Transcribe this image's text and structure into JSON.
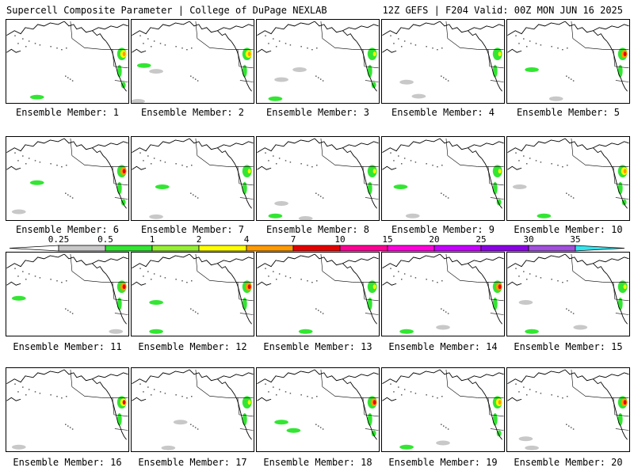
{
  "header": {
    "left": "Supercell Composite Parameter | College of DuPage NEXLAB",
    "right": "12Z GEFS | F204 Valid: 00Z MON JUN 16 2025"
  },
  "legend": {
    "ticks": [
      "0.25",
      "0.5",
      "1",
      "2",
      "4",
      "7",
      "10",
      "15",
      "20",
      "25",
      "30",
      "35"
    ],
    "colors": [
      "#ffffff",
      "#c8c8c8",
      "#32e632",
      "#96f032",
      "#ffff00",
      "#ff9b00",
      "#e60000",
      "#ff0096",
      "#ff00dc",
      "#c800ff",
      "#8c00e6",
      "#a050dc",
      "#32e6f0"
    ]
  },
  "panels": [
    {
      "label": "Ensemble Member: 1",
      "wc": [
        "orange",
        "yellow",
        "green"
      ],
      "gulf": true,
      "pac": [
        [
          0.25,
          0.93,
          "green"
        ]
      ]
    },
    {
      "label": "Ensemble Member: 2",
      "wc": [
        "orange",
        "yellow",
        "green"
      ],
      "gulf": false,
      "pac": [
        [
          0.1,
          0.55,
          "green"
        ],
        [
          0.2,
          0.62,
          "gray"
        ],
        [
          0.05,
          0.98,
          "gray"
        ]
      ]
    },
    {
      "label": "Ensemble Member: 3",
      "wc": [
        "yellow",
        "green",
        "green"
      ],
      "gulf": true,
      "pac": [
        [
          0.15,
          0.95,
          "green"
        ],
        [
          0.35,
          0.6,
          "gray"
        ],
        [
          0.2,
          0.72,
          "gray"
        ]
      ]
    },
    {
      "label": "Ensemble Member: 4",
      "wc": [
        "yellow",
        "green",
        "green"
      ],
      "gulf": false,
      "pac": [
        [
          0.3,
          0.92,
          "gray"
        ],
        [
          0.2,
          0.75,
          "gray"
        ]
      ]
    },
    {
      "label": "Ensemble Member: 5",
      "wc": [
        "red",
        "orange",
        "green"
      ],
      "gulf": false,
      "pac": [
        [
          0.2,
          0.6,
          "green"
        ],
        [
          0.4,
          0.95,
          "gray"
        ]
      ]
    },
    {
      "label": "Ensemble Member: 6",
      "wc": [
        "red",
        "orange",
        "green"
      ],
      "gulf": true,
      "pac": [
        [
          0.25,
          0.55,
          "green"
        ],
        [
          0.1,
          0.9,
          "gray"
        ]
      ]
    },
    {
      "label": "Ensemble Member: 7",
      "wc": [
        "yellow",
        "green",
        "green"
      ],
      "gulf": false,
      "pac": [
        [
          0.25,
          0.6,
          "green"
        ],
        [
          0.2,
          0.96,
          "gray"
        ]
      ]
    },
    {
      "label": "Ensemble Member: 8",
      "wc": [
        "yellow",
        "green",
        "green"
      ],
      "gulf": false,
      "pac": [
        [
          0.15,
          0.95,
          "green"
        ],
        [
          0.2,
          0.8,
          "gray"
        ],
        [
          0.4,
          0.98,
          "gray"
        ]
      ]
    },
    {
      "label": "Ensemble Member: 9",
      "wc": [
        "yellow",
        "green",
        "green"
      ],
      "gulf": true,
      "pac": [
        [
          0.15,
          0.6,
          "green"
        ],
        [
          0.25,
          0.95,
          "gray"
        ]
      ]
    },
    {
      "label": "Ensemble Member: 10",
      "wc": [
        "orange",
        "yellow",
        "green"
      ],
      "gulf": true,
      "pac": [
        [
          0.1,
          0.6,
          "gray"
        ],
        [
          0.3,
          0.95,
          "green"
        ]
      ]
    },
    {
      "label": "Ensemble Member: 11",
      "wc": [
        "red",
        "orange",
        "green"
      ],
      "gulf": false,
      "pac": [
        [
          0.1,
          0.55,
          "green"
        ],
        [
          0.9,
          0.95,
          "gray"
        ]
      ]
    },
    {
      "label": "Ensemble Member: 12",
      "wc": [
        "red",
        "orange",
        "green"
      ],
      "gulf": false,
      "pac": [
        [
          0.2,
          0.6,
          "green"
        ],
        [
          0.2,
          0.95,
          "green"
        ]
      ]
    },
    {
      "label": "Ensemble Member: 13",
      "wc": [
        "yellow",
        "green",
        "green"
      ],
      "gulf": false,
      "pac": [
        [
          0.4,
          0.95,
          "green"
        ]
      ]
    },
    {
      "label": "Ensemble Member: 14",
      "wc": [
        "red",
        "orange",
        "green"
      ],
      "gulf": false,
      "pac": [
        [
          0.2,
          0.95,
          "green"
        ],
        [
          0.5,
          0.9,
          "gray"
        ]
      ]
    },
    {
      "label": "Ensemble Member: 15",
      "wc": [
        "yellow",
        "green",
        "green"
      ],
      "gulf": false,
      "pac": [
        [
          0.15,
          0.6,
          "gray"
        ],
        [
          0.2,
          0.95,
          "green"
        ],
        [
          0.6,
          0.9,
          "gray"
        ]
      ]
    },
    {
      "label": "Ensemble Member: 16",
      "wc": [
        "red",
        "yellow",
        "green"
      ],
      "gulf": false,
      "pac": [
        [
          0.1,
          0.95,
          "gray"
        ]
      ]
    },
    {
      "label": "Ensemble Member: 17",
      "wc": [
        "yellow",
        "green",
        "green"
      ],
      "gulf": false,
      "pac": [
        [
          0.3,
          0.96,
          "gray"
        ],
        [
          0.4,
          0.65,
          "gray"
        ]
      ]
    },
    {
      "label": "Ensemble Member: 18",
      "wc": [
        "red",
        "orange",
        "green"
      ],
      "gulf": true,
      "pac": [
        [
          0.2,
          0.65,
          "green"
        ],
        [
          0.3,
          0.75,
          "green"
        ]
      ]
    },
    {
      "label": "Ensemble Member: 19",
      "wc": [
        "orange",
        "yellow",
        "green"
      ],
      "gulf": true,
      "pac": [
        [
          0.2,
          0.95,
          "green"
        ],
        [
          0.5,
          0.9,
          "gray"
        ]
      ]
    },
    {
      "label": "Ensemble Member: 20",
      "wc": [
        "red",
        "orange",
        "green"
      ],
      "gulf": false,
      "pac": [
        [
          0.2,
          0.96,
          "gray"
        ],
        [
          0.15,
          0.85,
          "gray"
        ]
      ]
    }
  ],
  "fill_colors": {
    "gray": "#c8c8c8",
    "green": "#32e632",
    "lime": "#96f032",
    "yellow": "#ffff00",
    "orange": "#ff9b00",
    "red": "#e60000"
  }
}
